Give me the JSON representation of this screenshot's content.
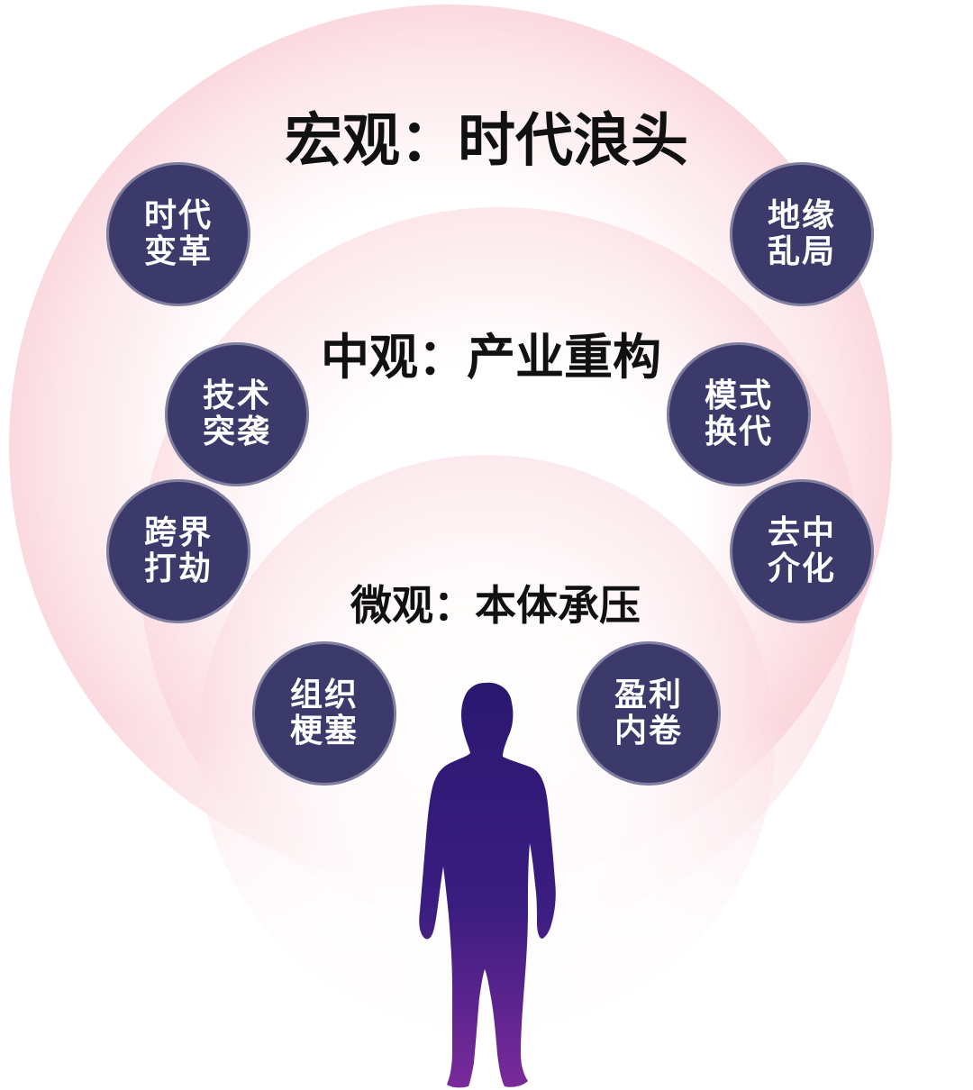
{
  "levels": {
    "macro": "宏观：时代浪头",
    "meso": "中观：产业重构",
    "micro": "微观：本体承压"
  },
  "bubbles": {
    "era_change": [
      "时代",
      "变革"
    ],
    "geo_chaos": [
      "地缘",
      "乱局"
    ],
    "tech_raid": [
      "技术",
      "突袭"
    ],
    "mode_shift": [
      "模式",
      "换代"
    ],
    "cross_border": [
      "跨界",
      "打劫"
    ],
    "disintermediation": [
      "去中",
      "介化"
    ],
    "org_block": [
      "组织",
      "梗塞"
    ],
    "profit_involution": [
      "盈利",
      "内卷"
    ]
  },
  "colors": {
    "bubble": "#3b3a6b",
    "person_top": "#2a1870",
    "person_bottom": "#7a2a9a"
  }
}
